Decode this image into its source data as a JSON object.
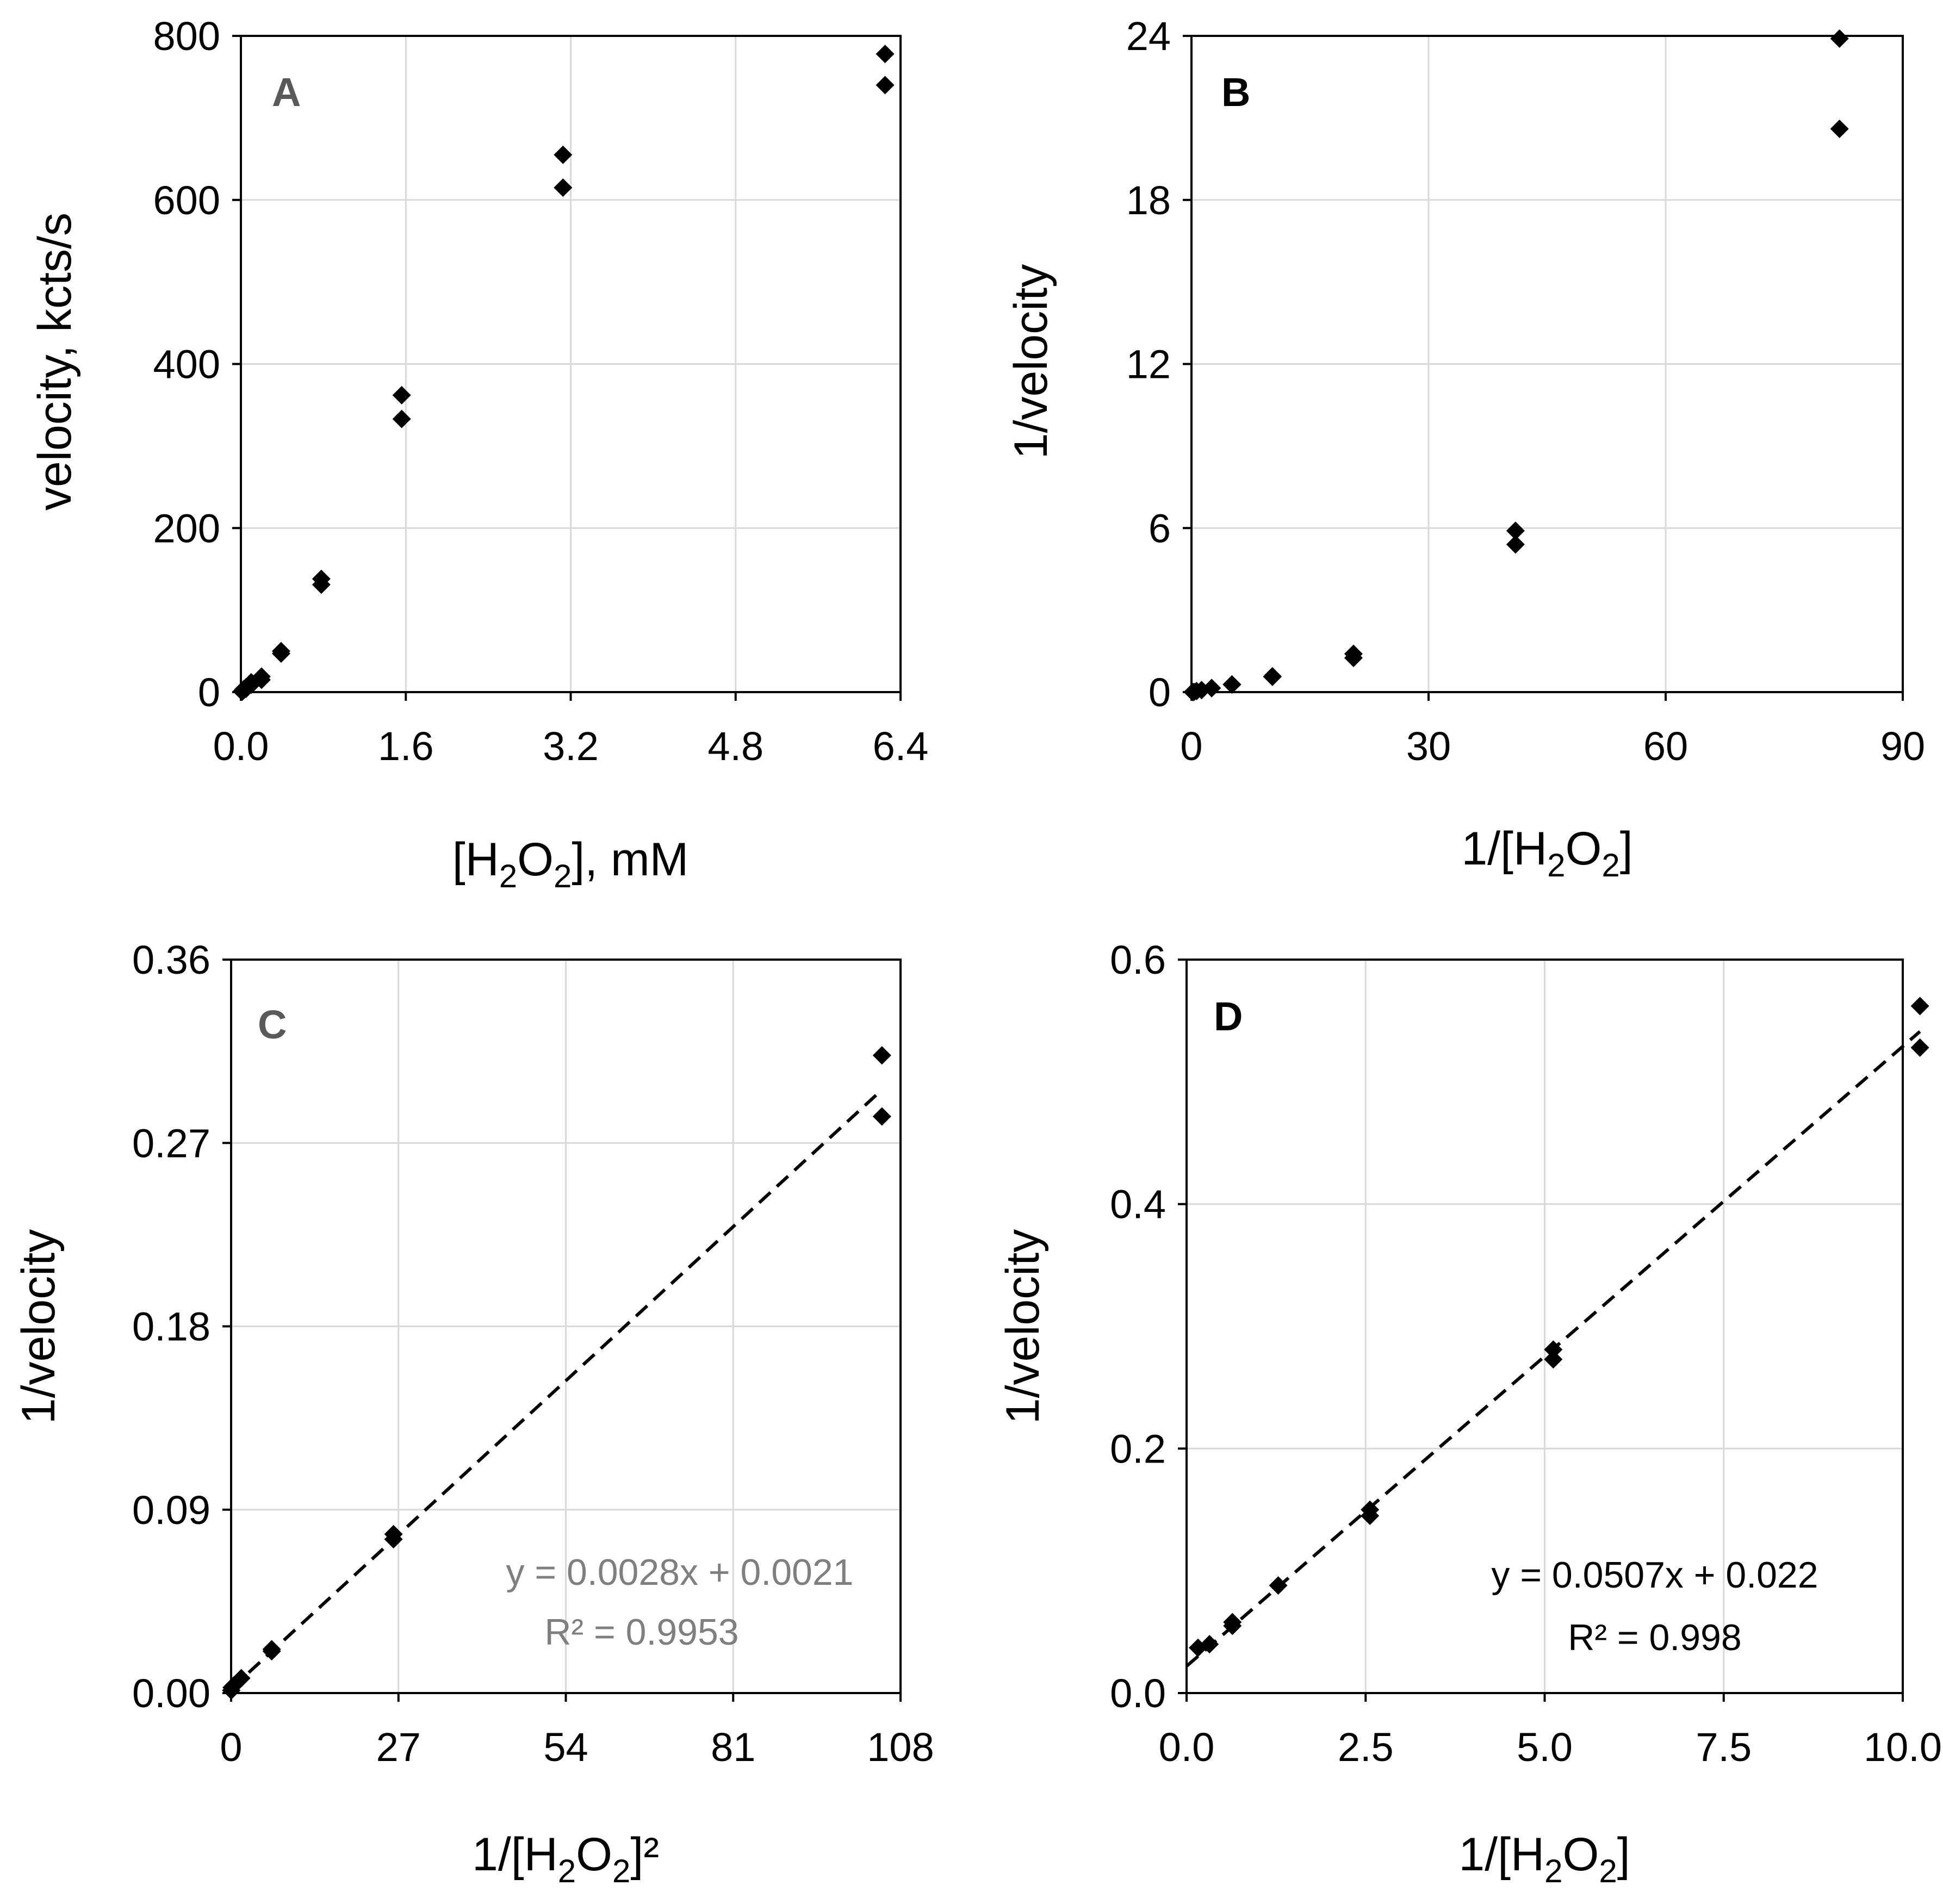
{
  "colors": {
    "marker": "#000000",
    "grid": "#d9d9d9",
    "panel_label_gray": "#595959",
    "equation_gray": "#7f7f7f"
  },
  "chart_data": [
    {
      "id": "A",
      "type": "scatter",
      "panel_label": "A",
      "xlabel": {
        "pre": "[H",
        "sub1": "2",
        "mid": "O",
        "sub2": "2",
        "post": "], mM"
      },
      "ylabel": "velocity, kcts/s",
      "xlim": [
        0,
        6.4
      ],
      "ylim": [
        0,
        800
      ],
      "xticks": [
        "0.0",
        "1.6",
        "3.2",
        "4.8",
        "6.4"
      ],
      "yticks": [
        "0",
        "200",
        "400",
        "600",
        "800"
      ],
      "points": [
        [
          0.0125,
          0.5
        ],
        [
          0.0125,
          1.5
        ],
        [
          0.025,
          2
        ],
        [
          0.025,
          3.5
        ],
        [
          0.05,
          4
        ],
        [
          0.05,
          6
        ],
        [
          0.1,
          9
        ],
        [
          0.1,
          12
        ],
        [
          0.2,
          15
        ],
        [
          0.2,
          19
        ],
        [
          0.39,
          47
        ],
        [
          0.39,
          50
        ],
        [
          0.78,
          131
        ],
        [
          0.78,
          138
        ],
        [
          1.56,
          333
        ],
        [
          1.56,
          362
        ],
        [
          3.125,
          615
        ],
        [
          3.125,
          655
        ],
        [
          6.25,
          740
        ],
        [
          6.25,
          778
        ]
      ]
    },
    {
      "id": "B",
      "type": "scatter",
      "panel_label": "B",
      "xlabel": {
        "pre": "1/[H",
        "sub1": "2",
        "mid": "O",
        "sub2": "2",
        "post": "]"
      },
      "ylabel": "1/velocity",
      "xlim": [
        0,
        90
      ],
      "ylim": [
        0,
        24
      ],
      "xticks": [
        "0",
        "30",
        "60",
        "90"
      ],
      "yticks": [
        "0",
        "6",
        "12",
        "18",
        "24"
      ],
      "points": [
        [
          0.16,
          0.0013
        ],
        [
          0.32,
          0.0073
        ],
        [
          0.64,
          0.0373
        ],
        [
          1.28,
          0.0758
        ],
        [
          2.56,
          0.145
        ],
        [
          2.56,
          0.152
        ],
        [
          5.12,
          0.275
        ],
        [
          5.12,
          0.283
        ],
        [
          10.24,
          0.56
        ],
        [
          10.24,
          0.58
        ],
        [
          20.5,
          1.25
        ],
        [
          20.5,
          1.4
        ],
        [
          41,
          5.4
        ],
        [
          41,
          5.9
        ],
        [
          82,
          20.6
        ],
        [
          82,
          23.9
        ]
      ]
    },
    {
      "id": "C",
      "type": "scatter",
      "panel_label": "C",
      "xlabel": {
        "pre": "1/[H",
        "sub1": "2",
        "mid": "O",
        "sub2": "2",
        "post": "]²"
      },
      "ylabel": "1/velocity",
      "xlim": [
        0,
        108
      ],
      "ylim": [
        0,
        0.36
      ],
      "xticks": [
        "0",
        "27",
        "54",
        "81",
        "108"
      ],
      "yticks": [
        "0.00",
        "0.09",
        "0.18",
        "0.27",
        "0.36"
      ],
      "points": [
        [
          0.0256,
          0.0013
        ],
        [
          0.1024,
          0.0027
        ],
        [
          0.41,
          0.0037
        ],
        [
          1.64,
          0.0073
        ],
        [
          6.55,
          0.0205
        ],
        [
          6.55,
          0.0215
        ],
        [
          26.2,
          0.0755
        ],
        [
          26.2,
          0.078
        ],
        [
          105,
          0.283
        ],
        [
          105,
          0.313
        ]
      ],
      "fit": {
        "slope": 0.0028,
        "intercept": 0.0021,
        "x_range": [
          0,
          105
        ]
      },
      "equation": "y = 0.0028x + 0.0021",
      "r_squared": "R² = 0.9953"
    },
    {
      "id": "D",
      "type": "scatter",
      "panel_label": "D",
      "xlabel": {
        "pre": "1/[H",
        "sub1": "2",
        "mid": "O",
        "sub2": "2",
        "post": "]"
      },
      "ylabel": "1/velocity",
      "xlim": [
        0,
        10
      ],
      "ylim": [
        0,
        0.6
      ],
      "xticks": [
        "0.0",
        "2.5",
        "5.0",
        "7.5",
        "10.0"
      ],
      "yticks": [
        "0.0",
        "0.2",
        "0.4",
        "0.6"
      ],
      "points": [
        [
          0.16,
          0.037
        ],
        [
          0.32,
          0.04
        ],
        [
          0.64,
          0.055
        ],
        [
          0.64,
          0.058
        ],
        [
          1.28,
          0.088
        ],
        [
          2.56,
          0.145
        ],
        [
          2.56,
          0.15
        ],
        [
          5.12,
          0.273
        ],
        [
          5.12,
          0.281
        ],
        [
          10.24,
          0.528
        ],
        [
          10.24,
          0.562
        ]
      ],
      "fit": {
        "slope": 0.0507,
        "intercept": 0.022,
        "x_range": [
          0,
          10.24
        ]
      },
      "equation": "y = 0.0507x + 0.022",
      "r_squared": "R² = 0.998"
    }
  ]
}
